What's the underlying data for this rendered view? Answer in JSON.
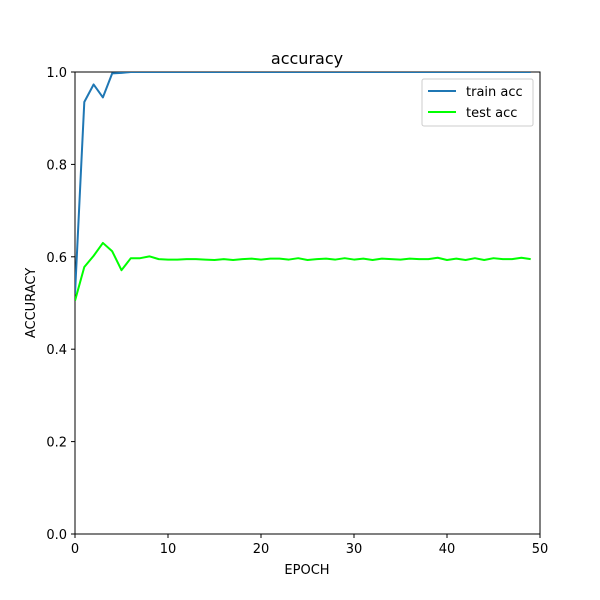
{
  "chart_data": {
    "type": "line",
    "title": "accuracy",
    "xlabel": "EPOCH",
    "ylabel": "ACCURACY",
    "xlim": [
      0,
      50
    ],
    "ylim": [
      0,
      1.0
    ],
    "xticks": [
      0,
      10,
      20,
      30,
      40,
      50
    ],
    "yticks": [
      0.0,
      0.2,
      0.4,
      0.6,
      0.8,
      1.0
    ],
    "xtick_labels": [
      "0",
      "10",
      "20",
      "30",
      "40",
      "50"
    ],
    "ytick_labels": [
      "0.0",
      "0.2",
      "0.4",
      "0.6",
      "0.8",
      "1.0"
    ],
    "grid": false,
    "legend_position": "upper-right",
    "series": [
      {
        "name": "train acc",
        "color": "#1f77b4",
        "x": [
          0,
          1,
          2,
          3,
          4,
          5,
          6,
          7,
          8,
          9,
          10,
          11,
          12,
          13,
          14,
          15,
          16,
          17,
          18,
          19,
          20,
          21,
          22,
          23,
          24,
          25,
          26,
          27,
          28,
          29,
          30,
          31,
          32,
          33,
          34,
          35,
          36,
          37,
          38,
          39,
          40,
          41,
          42,
          43,
          44,
          45,
          46,
          47,
          48,
          49
        ],
        "values": [
          0.52,
          0.935,
          0.973,
          0.945,
          0.997,
          0.998,
          1.0,
          1.0,
          1.0,
          1.0,
          1.0,
          1.0,
          1.0,
          1.0,
          1.0,
          1.0,
          1.0,
          1.0,
          1.0,
          1.0,
          1.0,
          1.0,
          1.0,
          1.0,
          1.0,
          1.0,
          1.0,
          1.0,
          1.0,
          1.0,
          1.0,
          1.0,
          1.0,
          1.0,
          1.0,
          1.0,
          1.0,
          1.0,
          1.0,
          1.0,
          1.0,
          1.0,
          1.0,
          1.0,
          1.0,
          1.0,
          1.0,
          1.0,
          1.0,
          1.0
        ]
      },
      {
        "name": "test acc",
        "color": "#00ff00",
        "x": [
          0,
          1,
          2,
          3,
          4,
          5,
          6,
          7,
          8,
          9,
          10,
          11,
          12,
          13,
          14,
          15,
          16,
          17,
          18,
          19,
          20,
          21,
          22,
          23,
          24,
          25,
          26,
          27,
          28,
          29,
          30,
          31,
          32,
          33,
          34,
          35,
          36,
          37,
          38,
          39,
          40,
          41,
          42,
          43,
          44,
          45,
          46,
          47,
          48,
          49
        ],
        "values": [
          0.505,
          0.578,
          0.602,
          0.63,
          0.612,
          0.571,
          0.597,
          0.597,
          0.601,
          0.595,
          0.594,
          0.594,
          0.595,
          0.595,
          0.594,
          0.593,
          0.595,
          0.593,
          0.595,
          0.596,
          0.594,
          0.596,
          0.596,
          0.594,
          0.597,
          0.593,
          0.595,
          0.596,
          0.594,
          0.597,
          0.594,
          0.596,
          0.593,
          0.596,
          0.595,
          0.594,
          0.596,
          0.595,
          0.595,
          0.598,
          0.593,
          0.596,
          0.593,
          0.597,
          0.593,
          0.597,
          0.595,
          0.595,
          0.598,
          0.595
        ]
      }
    ]
  }
}
